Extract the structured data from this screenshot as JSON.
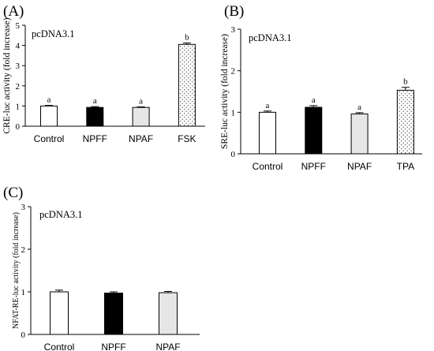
{
  "chart_data": [
    {
      "panel": "(A)",
      "type": "bar",
      "title": "pcDNA3.1",
      "ylabel": "CRE-luc activity (fold increase)",
      "ylim": [
        0,
        5
      ],
      "yticks": [
        0,
        1,
        2,
        3,
        4,
        5
      ],
      "categories": [
        "Control",
        "NPFF",
        "NPAF",
        "FSK"
      ],
      "values": [
        1.0,
        0.93,
        0.93,
        4.05
      ],
      "errors": [
        0.03,
        0.04,
        0.03,
        0.07
      ],
      "significance": [
        "a",
        "a",
        "a",
        "b"
      ],
      "fills": [
        "white",
        "black",
        "lightgray",
        "dotted"
      ]
    },
    {
      "panel": "(B)",
      "type": "bar",
      "title": "pcDNA3.1",
      "ylabel": "SRE-luc activity (fold increase)",
      "ylim": [
        0,
        3
      ],
      "yticks": [
        0,
        1,
        2,
        3
      ],
      "categories": [
        "Control",
        "NPFF",
        "NPAF",
        "TPA"
      ],
      "values": [
        1.0,
        1.12,
        0.96,
        1.53
      ],
      "errors": [
        0.03,
        0.04,
        0.03,
        0.07
      ],
      "significance": [
        "a",
        "a",
        "a",
        "b"
      ],
      "fills": [
        "white",
        "black",
        "lightgray",
        "dotted"
      ]
    },
    {
      "panel": "(C)",
      "type": "bar",
      "title": "pcDNA3.1",
      "ylabel": "NFAT-RE-luc activity (fold increase)",
      "ylim": [
        0,
        3
      ],
      "yticks": [
        0,
        1,
        2,
        3
      ],
      "categories": [
        "Control",
        "NPFF",
        "NPAF"
      ],
      "values": [
        1.0,
        0.97,
        0.98
      ],
      "errors": [
        0.04,
        0.03,
        0.03
      ],
      "significance": [],
      "fills": [
        "white",
        "black",
        "lightgray"
      ]
    }
  ]
}
